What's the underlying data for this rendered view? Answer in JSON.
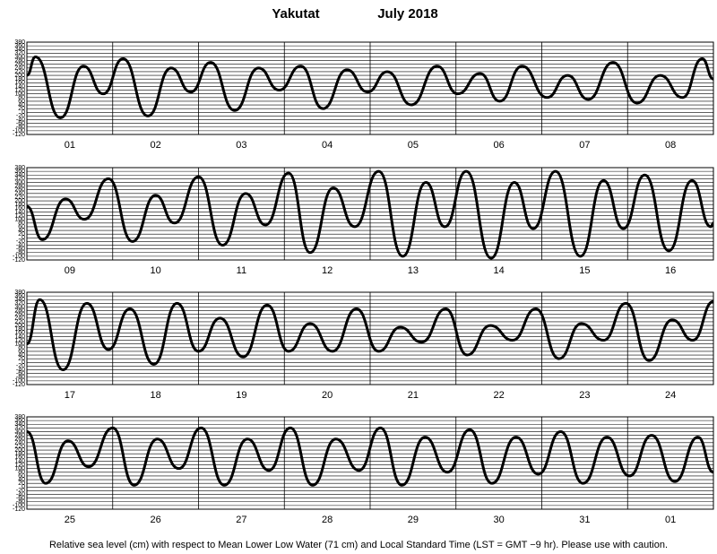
{
  "title": "Yakutat",
  "date": "July 2018",
  "footer": "Relative sea level (cm) with respect to Mean Lower Low Water (71 cm) and Local Standard Time (LST = GMT −9 hr). Please use with caution.",
  "chart_data": [
    {
      "type": "line",
      "categories": [
        "01",
        "02",
        "03",
        "04",
        "05",
        "06",
        "07",
        "08"
      ],
      "xlim": [
        0,
        8
      ],
      "ylim": [
        -120,
        380
      ],
      "yticks": [
        -120,
        -100,
        -80,
        -60,
        -40,
        -20,
        0,
        20,
        40,
        60,
        80,
        100,
        120,
        140,
        160,
        180,
        200,
        220,
        240,
        260,
        280,
        300,
        320,
        340,
        360,
        380
      ],
      "color": "#000000",
      "grid": true,
      "x": [
        0,
        0.1,
        0.39,
        0.66,
        0.89,
        1.12,
        1.41,
        1.68,
        1.91,
        2.14,
        2.42,
        2.7,
        2.94,
        3.19,
        3.45,
        3.73,
        3.97,
        4.2,
        4.48,
        4.78,
        5.02,
        5.28,
        5.51,
        5.77,
        6.06,
        6.3,
        6.54,
        6.83,
        7.11,
        7.38,
        7.64,
        7.87,
        8
      ],
      "values": [
        200,
        300,
        -30,
        250,
        100,
        290,
        -20,
        240,
        110,
        270,
        10,
        240,
        120,
        250,
        20,
        230,
        110,
        220,
        40,
        250,
        100,
        210,
        60,
        250,
        80,
        200,
        70,
        270,
        50,
        200,
        80,
        290,
        180
      ]
    },
    {
      "type": "line",
      "categories": [
        "09",
        "10",
        "11",
        "12",
        "13",
        "14",
        "15",
        "16"
      ],
      "xlim": [
        0,
        8
      ],
      "ylim": [
        -120,
        380
      ],
      "yticks": [
        -120,
        -100,
        -80,
        -60,
        -40,
        -20,
        0,
        20,
        40,
        60,
        80,
        100,
        120,
        140,
        160,
        180,
        200,
        220,
        240,
        260,
        280,
        300,
        320,
        340,
        360,
        380
      ],
      "color": "#000000",
      "grid": true,
      "x": [
        0,
        0.18,
        0.45,
        0.67,
        0.95,
        1.23,
        1.5,
        1.72,
        2.0,
        2.28,
        2.55,
        2.78,
        3.05,
        3.3,
        3.57,
        3.82,
        4.1,
        4.38,
        4.65,
        4.87,
        5.12,
        5.41,
        5.68,
        5.9,
        6.16,
        6.45,
        6.72,
        6.95,
        7.2,
        7.48,
        7.75,
        7.97,
        8
      ],
      "values": [
        170,
        -10,
        210,
        100,
        320,
        -20,
        230,
        80,
        330,
        -40,
        240,
        70,
        350,
        -80,
        270,
        60,
        360,
        -100,
        300,
        60,
        360,
        -110,
        300,
        50,
        360,
        -100,
        310,
        50,
        340,
        -70,
        310,
        60,
        80
      ]
    },
    {
      "type": "line",
      "categories": [
        "17",
        "18",
        "19",
        "20",
        "21",
        "22",
        "23",
        "24"
      ],
      "xlim": [
        0,
        8
      ],
      "ylim": [
        -120,
        380
      ],
      "yticks": [
        -120,
        -100,
        -80,
        -60,
        -40,
        -20,
        0,
        20,
        40,
        60,
        80,
        100,
        120,
        140,
        160,
        180,
        200,
        220,
        240,
        260,
        280,
        300,
        320,
        340,
        360,
        380
      ],
      "color": "#000000",
      "grid": true,
      "x": [
        0,
        0.15,
        0.42,
        0.7,
        0.95,
        1.2,
        1.48,
        1.75,
        2.0,
        2.25,
        2.52,
        2.8,
        3.05,
        3.3,
        3.56,
        3.84,
        4.1,
        4.35,
        4.6,
        4.88,
        5.13,
        5.4,
        5.66,
        5.93,
        6.2,
        6.46,
        6.72,
        6.98,
        7.25,
        7.52,
        7.76,
        8
      ],
      "values": [
        100,
        340,
        -40,
        320,
        70,
        290,
        -10,
        320,
        60,
        240,
        30,
        310,
        60,
        210,
        60,
        290,
        60,
        190,
        110,
        290,
        40,
        200,
        120,
        290,
        20,
        210,
        120,
        320,
        10,
        230,
        120,
        330
      ]
    },
    {
      "type": "line",
      "categories": [
        "25",
        "26",
        "27",
        "28",
        "29",
        "30",
        "31",
        "01"
      ],
      "xlim": [
        0,
        8
      ],
      "ylim": [
        -120,
        380
      ],
      "yticks": [
        -120,
        -100,
        -80,
        -60,
        -40,
        -20,
        0,
        20,
        40,
        60,
        80,
        100,
        120,
        140,
        160,
        180,
        200,
        220,
        240,
        260,
        280,
        300,
        320,
        340,
        360,
        380
      ],
      "color": "#000000",
      "grid": true,
      "x": [
        0,
        0.22,
        0.48,
        0.72,
        1.0,
        1.25,
        1.52,
        1.77,
        2.03,
        2.3,
        2.57,
        2.82,
        3.07,
        3.33,
        3.6,
        3.87,
        4.12,
        4.37,
        4.64,
        4.9,
        5.16,
        5.42,
        5.7,
        5.96,
        6.22,
        6.48,
        6.76,
        7.02,
        7.28,
        7.55,
        7.82,
        8
      ],
      "values": [
        300,
        20,
        250,
        110,
        320,
        10,
        260,
        100,
        320,
        10,
        260,
        90,
        320,
        10,
        260,
        90,
        320,
        10,
        270,
        80,
        310,
        20,
        270,
        70,
        300,
        20,
        270,
        60,
        280,
        30,
        270,
        80
      ]
    }
  ]
}
